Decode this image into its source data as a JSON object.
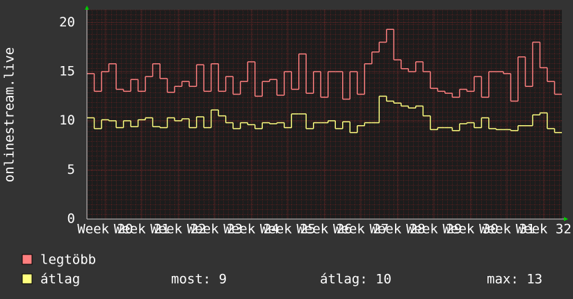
{
  "chart_data": {
    "type": "step",
    "ylabel": "onlinestream.live",
    "x": [
      19.5,
      19.7,
      19.9,
      20.1,
      20.3,
      20.5,
      20.7,
      20.9,
      21.1,
      21.3,
      21.5,
      21.7,
      21.9,
      22.1,
      22.3,
      22.5,
      22.7,
      22.9,
      23.1,
      23.3,
      23.5,
      23.7,
      23.9,
      24.1,
      24.3,
      24.5,
      24.7,
      24.9,
      25.1,
      25.3,
      25.5,
      25.7,
      25.9,
      26.1,
      26.3,
      26.5,
      26.7,
      26.9,
      27.1,
      27.3,
      27.5,
      27.7,
      27.9,
      28.1,
      28.3,
      28.5,
      28.7,
      28.9,
      29.1,
      29.3,
      29.5,
      29.7,
      29.9,
      30.1,
      30.3,
      30.5,
      30.7,
      30.9,
      31.1,
      31.3,
      31.5,
      31.7,
      31.9,
      32.1,
      32.3
    ],
    "series": [
      {
        "name": "legtöbb",
        "color": "#ff7f7f",
        "values": [
          14.8,
          13,
          15,
          15.8,
          13.2,
          13,
          14.2,
          13,
          14.5,
          15.8,
          14.3,
          12.9,
          13.5,
          14,
          13.5,
          15.7,
          13,
          15.8,
          13,
          14.5,
          12.7,
          14,
          16,
          12.5,
          14,
          14.2,
          12.6,
          15,
          13.2,
          16.8,
          12.8,
          15,
          12.4,
          15,
          15,
          12.2,
          15,
          12.7,
          15.8,
          17,
          18,
          19.3,
          16.2,
          15.3,
          15,
          16,
          15,
          13.3,
          13,
          12.8,
          12.4,
          13.2,
          13,
          14.5,
          12.4,
          15,
          15,
          14.8,
          12,
          16.5,
          13.5,
          18,
          15.4,
          14,
          12.7
        ]
      },
      {
        "name": "átlag",
        "color": "#ffff80",
        "values": [
          10.3,
          9.2,
          10.1,
          10,
          9.3,
          10,
          9.4,
          10.1,
          10.3,
          9.4,
          9.3,
          10.3,
          10,
          10.2,
          9.3,
          10.4,
          9.3,
          11.1,
          10.5,
          9.8,
          9.2,
          9.8,
          9.6,
          9.2,
          9.8,
          9.7,
          9.8,
          9.3,
          10.7,
          10.7,
          9.2,
          9.8,
          9.8,
          10,
          9.2,
          9.9,
          8.8,
          9.5,
          9.8,
          9.8,
          12.5,
          12,
          11.8,
          11.5,
          11.3,
          11.5,
          10.5,
          9.1,
          9.3,
          9.3,
          9,
          9.7,
          9.8,
          9.3,
          10.3,
          9.2,
          9.1,
          9.1,
          9,
          9.5,
          9.5,
          10.6,
          10.8,
          9.2,
          8.8
        ]
      }
    ],
    "xlim": [
      19.5,
      32.5
    ],
    "xticks": [
      {
        "value": 20,
        "label": "Week 20"
      },
      {
        "value": 21,
        "label": "Week 21"
      },
      {
        "value": 22,
        "label": "Week 22"
      },
      {
        "value": 23,
        "label": "Week 23"
      },
      {
        "value": 24,
        "label": "Week 24"
      },
      {
        "value": 25,
        "label": "Week 25"
      },
      {
        "value": 26,
        "label": "Week 26"
      },
      {
        "value": 27,
        "label": "Week 27"
      },
      {
        "value": 28,
        "label": "Week 28"
      },
      {
        "value": 29,
        "label": "Week 29"
      },
      {
        "value": 30,
        "label": "Week 30"
      },
      {
        "value": 31,
        "label": "Week 31"
      },
      {
        "value": 32,
        "label": "Week 32"
      }
    ],
    "ylim": [
      0,
      21.3
    ],
    "yticks": [
      0,
      5,
      10,
      15,
      20
    ],
    "grid": true,
    "summary": [
      "most: 9",
      "átlag: 10",
      "max: 13"
    ]
  }
}
